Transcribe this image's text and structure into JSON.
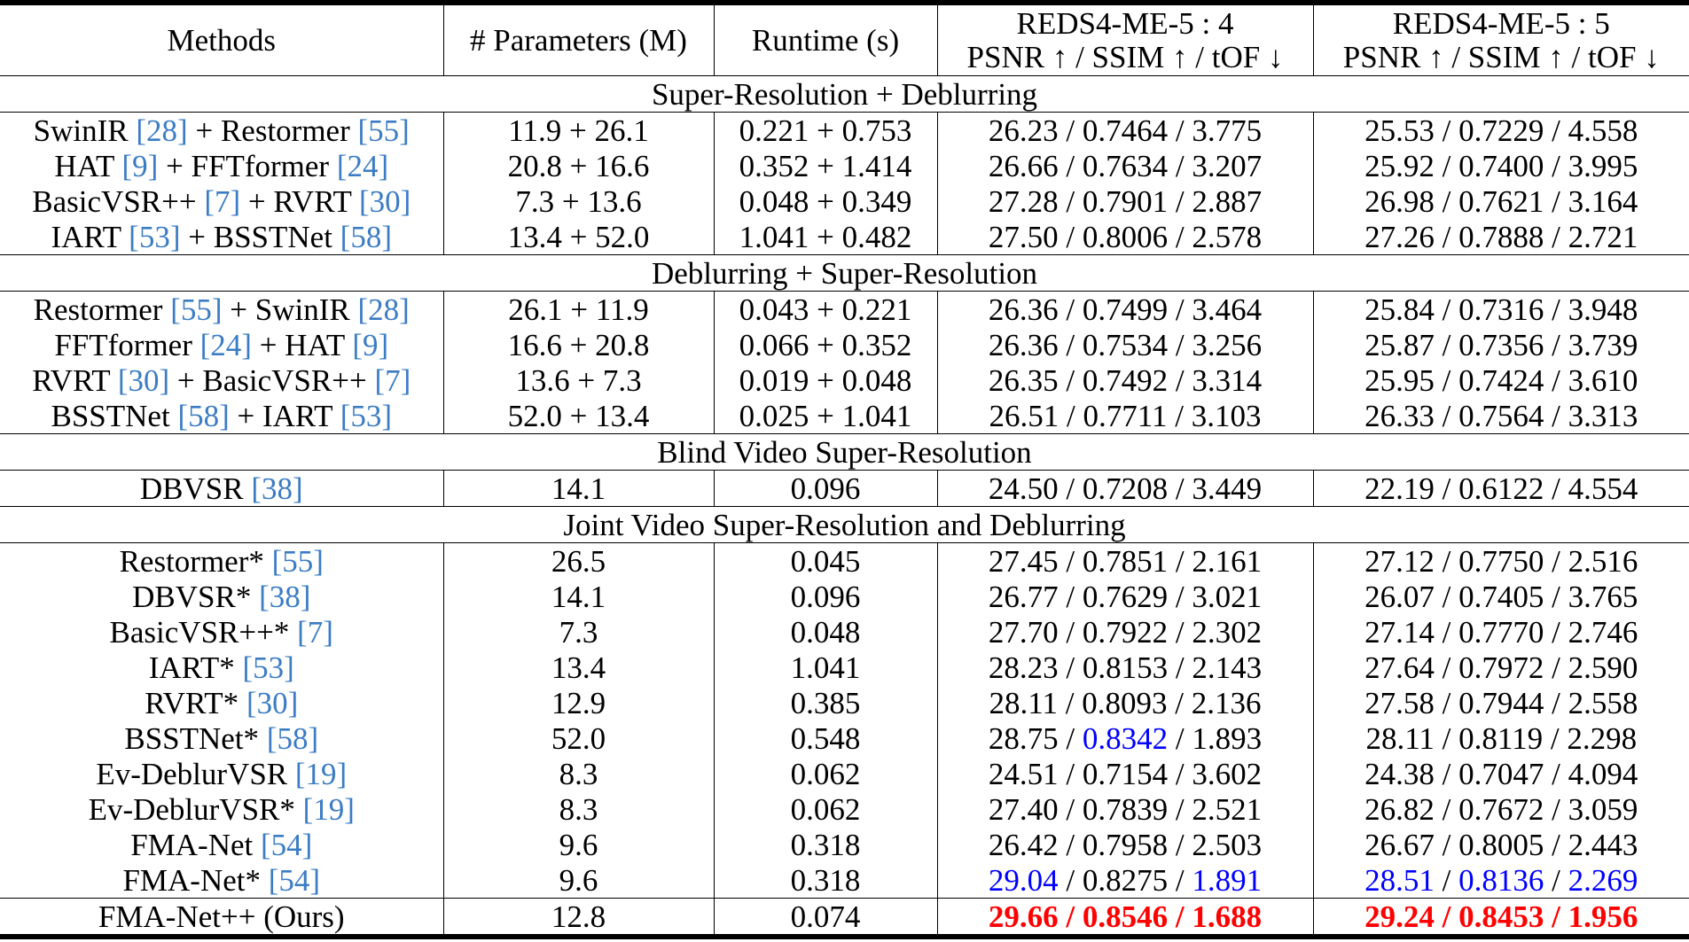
{
  "table": {
    "headers": {
      "methods": "Methods",
      "params": "# Parameters (M)",
      "runtime": "Runtime (s)",
      "reds54_line1": "REDS4-ME-5 : 4",
      "reds54_line2": "PSNR ↑ / SSIM ↑ / tOF ↓",
      "reds55_line1": "REDS4-ME-5 : 5",
      "reds55_line2": "PSNR ↑ / SSIM ↑ / tOF ↓"
    },
    "colors": {
      "citation": "#3b7cc4",
      "second_best": "#0000ff",
      "best": "#ff0000"
    },
    "sections": [
      {
        "label": "Super-Resolution + Deblurring",
        "rows": [
          {
            "m1": "SwinIR ",
            "c1": "[28]",
            "m2": " + Restormer ",
            "c2": "[55]",
            "params": "11.9 + 26.1",
            "runtime": "0.221 + 0.753",
            "a": [
              "26.23",
              "0.7464",
              "3.775"
            ],
            "b": [
              "25.53",
              "0.7229",
              "4.558"
            ]
          },
          {
            "m1": "HAT ",
            "c1": "[9]",
            "m2": " + FFTformer ",
            "c2": "[24]",
            "params": "20.8 + 16.6",
            "runtime": "0.352 + 1.414",
            "a": [
              "26.66",
              "0.7634",
              "3.207"
            ],
            "b": [
              "25.92",
              "0.7400",
              "3.995"
            ]
          },
          {
            "m1": "BasicVSR++ ",
            "c1": "[7]",
            "m2": " + RVRT ",
            "c2": "[30]",
            "params": "7.3 + 13.6",
            "runtime": "0.048 + 0.349",
            "a": [
              "27.28",
              "0.7901",
              "2.887"
            ],
            "b": [
              "26.98",
              "0.7621",
              "3.164"
            ]
          },
          {
            "m1": "IART ",
            "c1": "[53]",
            "m2": " + BSSTNet ",
            "c2": "[58]",
            "params": "13.4 + 52.0",
            "runtime": "1.041 + 0.482",
            "a": [
              "27.50",
              "0.8006",
              "2.578"
            ],
            "b": [
              "27.26",
              "0.7888",
              "2.721"
            ]
          }
        ]
      },
      {
        "label": "Deblurring + Super-Resolution",
        "rows": [
          {
            "m1": "Restormer ",
            "c1": "[55]",
            "m2": " + SwinIR ",
            "c2": "[28]",
            "params": "26.1 + 11.9",
            "runtime": "0.043 + 0.221",
            "a": [
              "26.36",
              "0.7499",
              "3.464"
            ],
            "b": [
              "25.84",
              "0.7316",
              "3.948"
            ]
          },
          {
            "m1": "FFTformer ",
            "c1": "[24]",
            "m2": " + HAT ",
            "c2": "[9]",
            "params": "16.6 + 20.8",
            "runtime": "0.066 + 0.352",
            "a": [
              "26.36",
              "0.7534",
              "3.256"
            ],
            "b": [
              "25.87",
              "0.7356",
              "3.739"
            ]
          },
          {
            "m1": "RVRT ",
            "c1": "[30]",
            "m2": " + BasicVSR++ ",
            "c2": "[7]",
            "params": "13.6 + 7.3",
            "runtime": "0.019 + 0.048",
            "a": [
              "26.35",
              "0.7492",
              "3.314"
            ],
            "b": [
              "25.95",
              "0.7424",
              "3.610"
            ]
          },
          {
            "m1": "BSSTNet ",
            "c1": "[58]",
            "m2": " + IART ",
            "c2": "[53]",
            "params": "52.0 + 13.4",
            "runtime": "0.025 + 1.041",
            "a": [
              "26.51",
              "0.7711",
              "3.103"
            ],
            "b": [
              "26.33",
              "0.7564",
              "3.313"
            ]
          }
        ]
      },
      {
        "label": "Blind Video Super-Resolution",
        "rows": [
          {
            "m1": "DBVSR ",
            "c1": "[38]",
            "params": "14.1",
            "runtime": "0.096",
            "a": [
              "24.50",
              "0.7208",
              "3.449"
            ],
            "b": [
              "22.19",
              "0.6122",
              "4.554"
            ]
          }
        ]
      },
      {
        "label": "Joint Video Super-Resolution and Deblurring",
        "rows": [
          {
            "m1": "Restormer* ",
            "c1": "[55]",
            "params": "26.5",
            "runtime": "0.045",
            "a": [
              "27.45",
              "0.7851",
              "2.161"
            ],
            "b": [
              "27.12",
              "0.7750",
              "2.516"
            ]
          },
          {
            "m1": "DBVSR* ",
            "c1": "[38]",
            "params": "14.1",
            "runtime": "0.096",
            "a": [
              "26.77",
              "0.7629",
              "3.021"
            ],
            "b": [
              "26.07",
              "0.7405",
              "3.765"
            ]
          },
          {
            "m1": "BasicVSR++* ",
            "c1": "[7]",
            "params": "7.3",
            "runtime": "0.048",
            "a": [
              "27.70",
              "0.7922",
              "2.302"
            ],
            "b": [
              "27.14",
              "0.7770",
              "2.746"
            ]
          },
          {
            "m1": "IART* ",
            "c1": "[53]",
            "params": "13.4",
            "runtime": "1.041",
            "a": [
              "28.23",
              "0.8153",
              "2.143"
            ],
            "b": [
              "27.64",
              "0.7972",
              "2.590"
            ]
          },
          {
            "m1": "RVRT* ",
            "c1": "[30]",
            "params": "12.9",
            "runtime": "0.385",
            "a": [
              "28.11",
              "0.8093",
              "2.136"
            ],
            "b": [
              "27.58",
              "0.7944",
              "2.558"
            ]
          },
          {
            "m1": "BSSTNet* ",
            "c1": "[58]",
            "params": "52.0",
            "runtime": "0.548",
            "a": [
              "28.75",
              "0.8342",
              "1.893"
            ],
            "b": [
              "28.11",
              "0.8119",
              "2.298"
            ],
            "a_hl": [
              "",
              "second",
              ""
            ]
          },
          {
            "m1": "Ev-DeblurVSR ",
            "c1": "[19]",
            "params": "8.3",
            "runtime": "0.062",
            "a": [
              "24.51",
              "0.7154",
              "3.602"
            ],
            "b": [
              "24.38",
              "0.7047",
              "4.094"
            ]
          },
          {
            "m1": "Ev-DeblurVSR* ",
            "c1": "[19]",
            "params": "8.3",
            "runtime": "0.062",
            "a": [
              "27.40",
              "0.7839",
              "2.521"
            ],
            "b": [
              "26.82",
              "0.7672",
              "3.059"
            ]
          },
          {
            "m1": "FMA-Net ",
            "c1": "[54]",
            "params": "9.6",
            "runtime": "0.318",
            "a": [
              "26.42",
              "0.7958",
              "2.503"
            ],
            "b": [
              "26.67",
              "0.8005",
              "2.443"
            ]
          },
          {
            "m1": "FMA-Net* ",
            "c1": "[54]",
            "params": "9.6",
            "runtime": "0.318",
            "a": [
              "29.04",
              "0.8275",
              "1.891"
            ],
            "b": [
              "28.51",
              "0.8136",
              "2.269"
            ],
            "a_hl": [
              "second",
              "",
              "second"
            ],
            "b_hl": [
              "second",
              "second",
              "second"
            ]
          }
        ]
      }
    ],
    "ours": {
      "method": "FMA-Net++ (Ours)",
      "params": "12.8",
      "runtime": "0.074",
      "a": [
        "29.66",
        "0.8546",
        "1.688"
      ],
      "b": [
        "29.24",
        "0.8453",
        "1.956"
      ]
    }
  }
}
